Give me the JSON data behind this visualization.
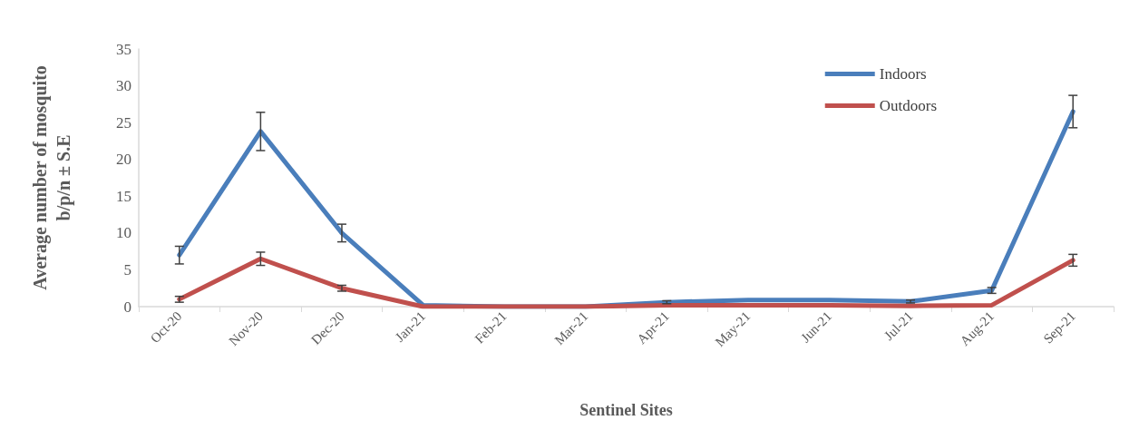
{
  "chart_data": {
    "type": "line",
    "xlabel": "Sentinel Sites",
    "ylabel": "Average number of mosquito\nb/p/n ± S.E",
    "categories": [
      "Oct-20",
      "Nov-20",
      "Dec-20",
      "Jan-21",
      "Feb-21",
      "Mar-21",
      "Apr-21",
      "May-21",
      "Jun-21",
      "Jul-21",
      "Aug-21",
      "Sep-21"
    ],
    "series": [
      {
        "name": "Indoors",
        "color": "#4a7ebb",
        "values": [
          7,
          23.8,
          10,
          0.2,
          0,
          0,
          0.6,
          0.9,
          0.9,
          0.7,
          2.2,
          26.5
        ],
        "errors": [
          1.2,
          2.6,
          1.2,
          null,
          null,
          null,
          0.2,
          null,
          null,
          0.2,
          0.4,
          2.2
        ]
      },
      {
        "name": "Outdoors",
        "color": "#c0504d",
        "values": [
          1,
          6.5,
          2.5,
          0,
          0,
          0,
          0.2,
          0.2,
          0.2,
          0.1,
          0.2,
          6.3
        ],
        "errors": [
          0.4,
          0.9,
          0.4,
          null,
          null,
          null,
          null,
          null,
          null,
          null,
          null,
          0.8
        ]
      }
    ],
    "ylim": [
      0,
      35
    ],
    "yticks": [
      0,
      5,
      10,
      15,
      20,
      25,
      30,
      35
    ],
    "grid": false,
    "legend": "top right",
    "marker": "none",
    "line_style": "solid"
  }
}
